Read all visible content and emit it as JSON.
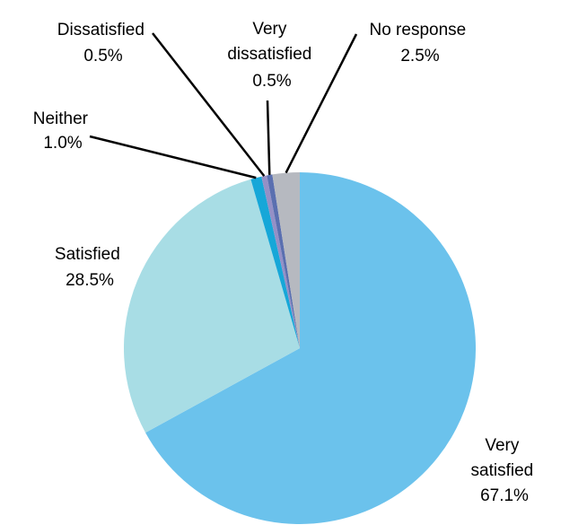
{
  "chart_data": {
    "type": "pie",
    "title": "",
    "start": "12 o'clock",
    "direction": "clockwise",
    "slices": [
      {
        "key": "very_satisfied",
        "label_lines": [
          "Very",
          "satisfied"
        ],
        "value": 67.1,
        "value_text": "67.1%",
        "color": "#6BC2EC"
      },
      {
        "key": "satisfied",
        "label_lines": [
          "Satisfied"
        ],
        "value": 28.5,
        "value_text": "28.5%",
        "color": "#A8DDE5"
      },
      {
        "key": "neither",
        "label_lines": [
          "Neither"
        ],
        "value": 1.0,
        "value_text": "1.0%",
        "color": "#16A7D8"
      },
      {
        "key": "dissatisfied",
        "label_lines": [
          "Dissatisfied"
        ],
        "value": 0.5,
        "value_text": "0.5%",
        "color": "#9490C6"
      },
      {
        "key": "very_dissatisfied",
        "label_lines": [
          "Very",
          "dissatisfied"
        ],
        "value": 0.5,
        "value_text": "0.5%",
        "color": "#5A6FB0"
      },
      {
        "key": "no_response",
        "label_lines": [
          "No response"
        ],
        "value": 2.5,
        "value_text": "2.5%",
        "color": "#B6B9C0"
      }
    ]
  }
}
